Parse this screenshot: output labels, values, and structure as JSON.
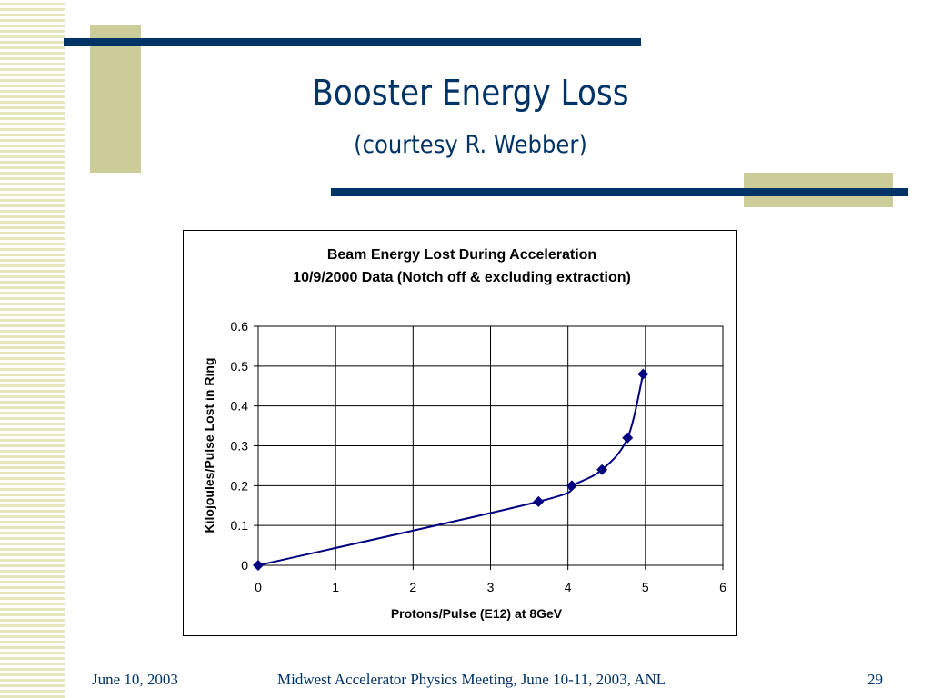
{
  "slide": {
    "title": "Booster Energy Loss",
    "subtitle": "(courtesy R. Webber)"
  },
  "footer": {
    "date": "June 10, 2003",
    "event": "Midwest Accelerator Physics Meeting, June 10-11, 2003, ANL",
    "page": "29"
  },
  "colors": {
    "title": "#003366",
    "accent_bar": "#003366",
    "accent_block": "#cccc99",
    "series": "#000080"
  },
  "chart_data": {
    "type": "line",
    "title": "Beam Energy Lost During Acceleration",
    "subtitle": "10/9/2000 Data (Notch off & excluding extraction)",
    "xlabel": "Protons/Pulse (E12) at 8GeV",
    "ylabel": "Kilojoules/Pulse Lost in Ring",
    "xlim": [
      0,
      6
    ],
    "ylim": [
      0,
      0.6
    ],
    "xticks": [
      "0",
      "1",
      "2",
      "3",
      "4",
      "5",
      "6"
    ],
    "yticks": [
      "0",
      "0.1",
      "0.2",
      "0.3",
      "0.4",
      "0.5",
      "0.6"
    ],
    "grid": true,
    "legend": "none",
    "series": [
      {
        "marker": "diamond",
        "points": [
          {
            "x": 0,
            "y": 0
          },
          {
            "x": 3.62,
            "y": 0.16
          },
          {
            "x": 4.05,
            "y": 0.2
          },
          {
            "x": 4.44,
            "y": 0.24
          },
          {
            "x": 4.77,
            "y": 0.32
          },
          {
            "x": 4.97,
            "y": 0.48
          }
        ]
      }
    ]
  }
}
